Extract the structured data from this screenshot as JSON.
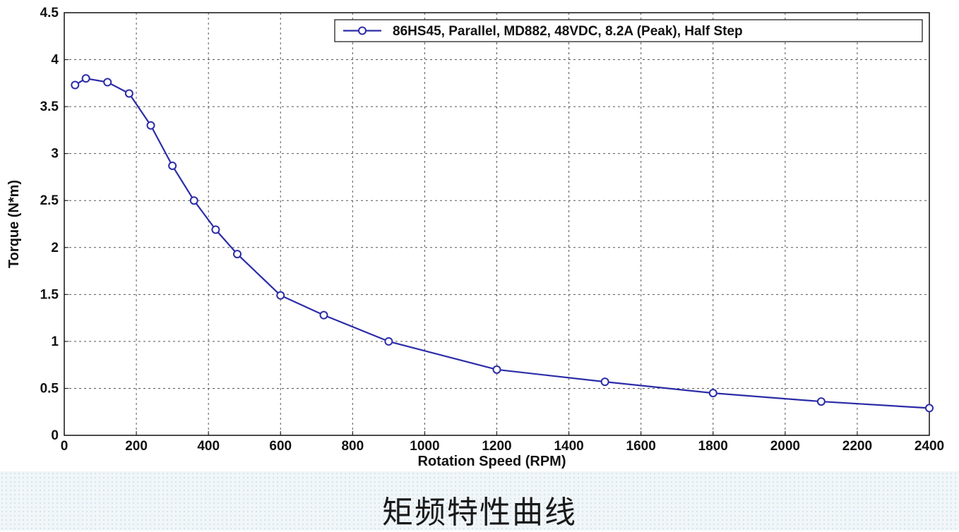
{
  "caption": "矩频特性曲线",
  "chart_data": {
    "type": "line",
    "xlabel": "Rotation Speed (RPM)",
    "ylabel": "Torque (N*m)",
    "xlim": [
      0,
      2400
    ],
    "ylim": [
      0,
      4.5
    ],
    "xticks": [
      "0",
      "200",
      "400",
      "600",
      "800",
      "1000",
      "1200",
      "1400",
      "1600",
      "1800",
      "2000",
      "2200",
      "2400"
    ],
    "yticks": [
      "0",
      "0.5",
      "1",
      "1.5",
      "2",
      "2.5",
      "3",
      "3.5",
      "4",
      "4.5"
    ],
    "grid": true,
    "legend_position": "top-right",
    "line_color": "#2c2ca8",
    "series": [
      {
        "name": "86HS45, Parallel, MD882, 48VDC, 8.2A (Peak), Half Step",
        "x": [
          30,
          60,
          120,
          180,
          240,
          300,
          360,
          420,
          480,
          600,
          720,
          900,
          1200,
          1500,
          1800,
          2100,
          2400
        ],
        "y": [
          3.73,
          3.8,
          3.76,
          3.64,
          3.3,
          2.87,
          2.5,
          2.19,
          1.93,
          1.49,
          1.28,
          1.0,
          0.7,
          0.57,
          0.45,
          0.36,
          0.29
        ]
      }
    ]
  }
}
